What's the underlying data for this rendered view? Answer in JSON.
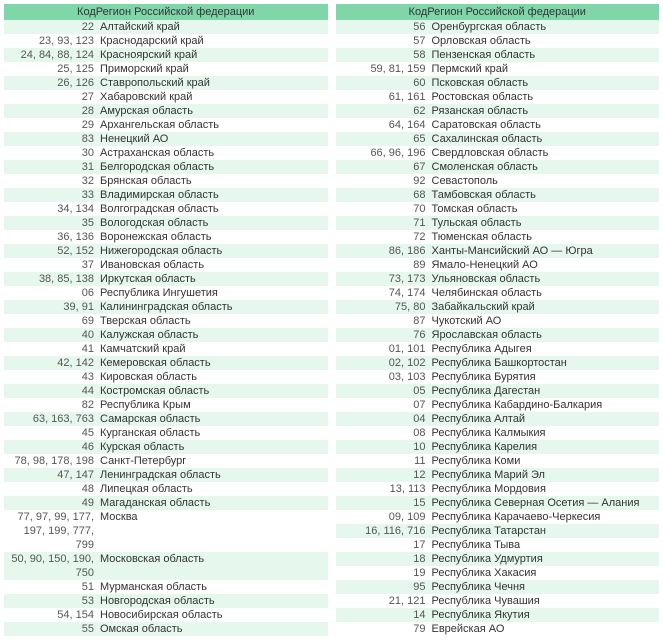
{
  "header_label": "КодРегион Российской федерации",
  "colors": {
    "header_bg": "#7fd6a9",
    "row_even_bg": "#e6f7ee",
    "row_odd_bg": "#ffffff",
    "text": "#333333"
  },
  "left": [
    {
      "code": "22",
      "region": "Алтайский край"
    },
    {
      "code": "23, 93, 123",
      "region": "Краснодарский край"
    },
    {
      "code": "24, 84, 88, 124",
      "region": "Красноярский край"
    },
    {
      "code": "25, 125",
      "region": "Приморский край"
    },
    {
      "code": "26, 126",
      "region": "Ставропольский край"
    },
    {
      "code": "27",
      "region": "Хабаровский край"
    },
    {
      "code": "28",
      "region": "Амурская область"
    },
    {
      "code": "29",
      "region": "Архангельская область"
    },
    {
      "code": "83",
      "region": "Ненецкий АО"
    },
    {
      "code": "30",
      "region": "Астраханская область"
    },
    {
      "code": "31",
      "region": "Белгородская область"
    },
    {
      "code": "32",
      "region": "Брянская область"
    },
    {
      "code": "33",
      "region": "Владимирская область"
    },
    {
      "code": "34, 134",
      "region": "Волгоградская область"
    },
    {
      "code": "35",
      "region": "Вологодская область"
    },
    {
      "code": "36, 136",
      "region": "Воронежская область"
    },
    {
      "code": "52, 152",
      "region": "Нижегородская область"
    },
    {
      "code": "37",
      "region": "Ивановская область"
    },
    {
      "code": "38, 85, 138",
      "region": "Иркутская область"
    },
    {
      "code": "06",
      "region": "Республика Ингушетия"
    },
    {
      "code": "39, 91",
      "region": "Калининградская область"
    },
    {
      "code": "69",
      "region": "Тверская область"
    },
    {
      "code": "40",
      "region": "Калужская область"
    },
    {
      "code": "41",
      "region": "Камчатский край"
    },
    {
      "code": "42, 142",
      "region": "Кемеровская область"
    },
    {
      "code": "43",
      "region": "Кировская область"
    },
    {
      "code": "44",
      "region": "Костромская область"
    },
    {
      "code": "82",
      "region": "Республика Крым"
    },
    {
      "code": "63, 163, 763",
      "region": "Самарская область"
    },
    {
      "code": "45",
      "region": "Курганская область"
    },
    {
      "code": "46",
      "region": "Курская область"
    },
    {
      "code": "78, 98, 178, 198",
      "region": "Санкт-Петербург"
    },
    {
      "code": "47, 147",
      "region": "Ленинградская область"
    },
    {
      "code": "48",
      "region": "Липецкая область"
    },
    {
      "code": "49",
      "region": "Магаданская область"
    },
    {
      "code": "77, 97, 99, 177, 197, 199, 777, 799",
      "region": "Москва"
    },
    {
      "code": "50, 90, 150, 190, 750",
      "region": "Московская область"
    },
    {
      "code": "51",
      "region": "Мурманская область"
    },
    {
      "code": "53",
      "region": "Новгородская область"
    },
    {
      "code": "54, 154",
      "region": "Новосибирская область"
    },
    {
      "code": "55",
      "region": "Омская область"
    }
  ],
  "right": [
    {
      "code": "56",
      "region": "Оренбургская область"
    },
    {
      "code": "57",
      "region": "Орловская область"
    },
    {
      "code": "58",
      "region": "Пензенская область"
    },
    {
      "code": "59, 81, 159",
      "region": "Пермский край"
    },
    {
      "code": "60",
      "region": "Псковская область"
    },
    {
      "code": "61, 161",
      "region": "Ростовская область"
    },
    {
      "code": "62",
      "region": "Рязанская область"
    },
    {
      "code": "64, 164",
      "region": "Саратовская область"
    },
    {
      "code": "65",
      "region": "Сахалинская область"
    },
    {
      "code": "66, 96, 196",
      "region": "Свердловская область"
    },
    {
      "code": "67",
      "region": "Смоленская область"
    },
    {
      "code": "92",
      "region": "Севастополь"
    },
    {
      "code": "68",
      "region": "Тамбовская область"
    },
    {
      "code": "70",
      "region": "Томская область"
    },
    {
      "code": "71",
      "region": "Тульская область"
    },
    {
      "code": "72",
      "region": "Тюменская область"
    },
    {
      "code": "86, 186",
      "region": "Ханты-Мансийский АО — Югра"
    },
    {
      "code": "89",
      "region": "Ямало-Ненецкий АО"
    },
    {
      "code": "73, 173",
      "region": "Ульяновская область"
    },
    {
      "code": "74, 174",
      "region": "Челябинская область"
    },
    {
      "code": "75, 80",
      "region": "Забайкальский край"
    },
    {
      "code": "87",
      "region": "Чукотский АО"
    },
    {
      "code": "76",
      "region": "Ярославская область"
    },
    {
      "code": "01, 101",
      "region": "Республика Адыгея"
    },
    {
      "code": "02, 102",
      "region": "Республика Башкортостан"
    },
    {
      "code": "03, 103",
      "region": "Республика Бурятия"
    },
    {
      "code": "05",
      "region": "Республика Дагестан"
    },
    {
      "code": "07",
      "region": "Республика Кабардино-Балкария"
    },
    {
      "code": "04",
      "region": "Республика Алтай"
    },
    {
      "code": "08",
      "region": "Республика Калмыкия"
    },
    {
      "code": "10",
      "region": "Республика Карелия"
    },
    {
      "code": "11",
      "region": "Республика Коми"
    },
    {
      "code": "12",
      "region": "Республика Марий Эл"
    },
    {
      "code": "13, 113",
      "region": "Республика Мордовия"
    },
    {
      "code": "15",
      "region": "Республика Северная Осетия — Алания"
    },
    {
      "code": "09, 109",
      "region": "Республика Карачаево-Черкесия"
    },
    {
      "code": "16, 116, 716",
      "region": "Республика Татарстан"
    },
    {
      "code": "17",
      "region": "Республика Тыва"
    },
    {
      "code": "18",
      "region": "Республика Удмуртия"
    },
    {
      "code": "19",
      "region": "Республика Хакасия"
    },
    {
      "code": "95",
      "region": "Республика Чечня"
    },
    {
      "code": "21, 121",
      "region": "Республика Чувашия"
    },
    {
      "code": "14",
      "region": "Республика Якутия"
    },
    {
      "code": "79",
      "region": "Еврейская АО"
    }
  ]
}
